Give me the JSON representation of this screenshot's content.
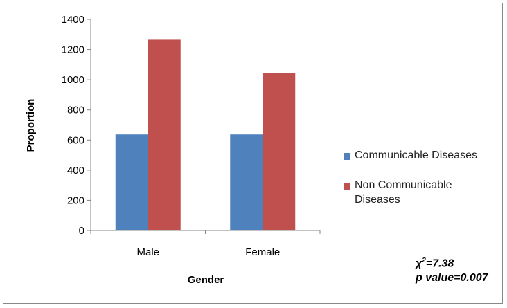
{
  "chart_data": {
    "type": "bar",
    "categories": [
      "Male",
      "Female"
    ],
    "series": [
      {
        "name": "Communicable Diseases",
        "color": "#4f81bd",
        "values": [
          637,
          637
        ]
      },
      {
        "name": "Non Communicable Diseases",
        "color": "#c0504d",
        "values": [
          1265,
          1045
        ]
      }
    ],
    "title": "",
    "xlabel": "Gender",
    "ylabel": "Proportion",
    "ylim": [
      0,
      1400
    ],
    "yticks": [
      0,
      200,
      400,
      600,
      800,
      1000,
      1200,
      1400
    ],
    "legend_position": "right",
    "grid": false
  },
  "annotation": {
    "chi_symbol": "χ",
    "chi_exponent": "2",
    "chi_value": "=7.38",
    "p_value": "p value=0.007"
  }
}
